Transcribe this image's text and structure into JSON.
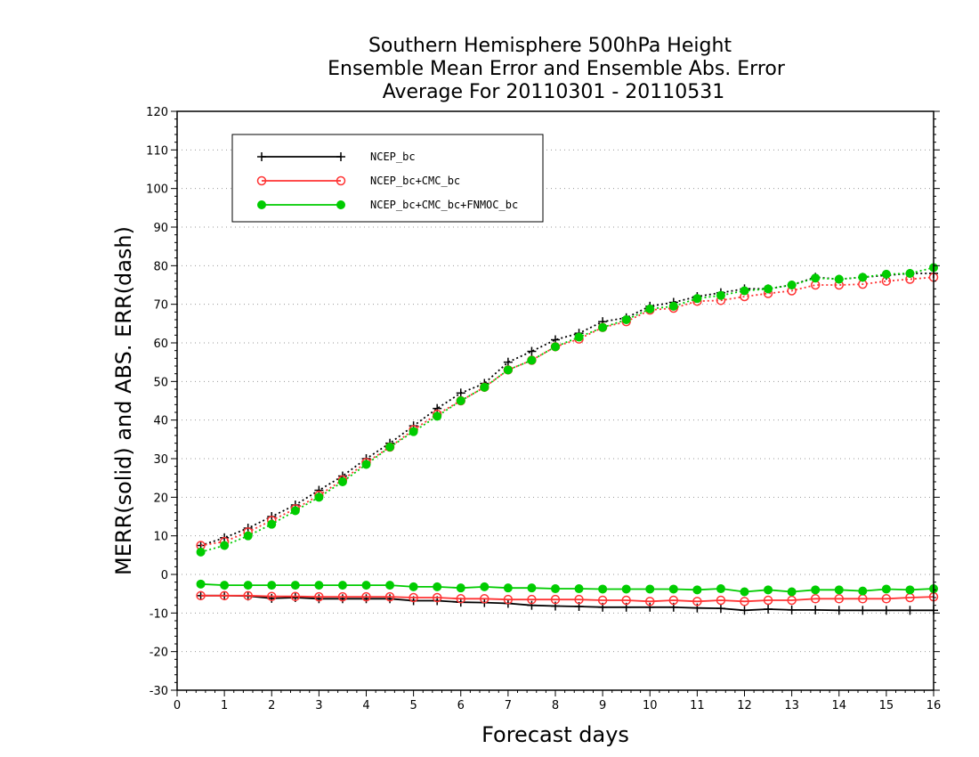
{
  "chart_data": {
    "type": "line",
    "title": [
      "Southern Hemisphere 500hPa Height",
      "Ensemble Mean Error and Ensemble Abs. Error",
      "Average For 20110301 - 20110531"
    ],
    "xlabel": "Forecast days",
    "ylabel": "MERR(solid) and ABS. ERR(dash)",
    "xlim": [
      0,
      16
    ],
    "ylim": [
      -30,
      120
    ],
    "xticks": [
      0,
      1,
      2,
      3,
      4,
      5,
      6,
      7,
      8,
      9,
      10,
      11,
      12,
      13,
      14,
      15,
      16
    ],
    "yticks": [
      -30,
      -20,
      -10,
      0,
      10,
      20,
      30,
      40,
      50,
      60,
      70,
      80,
      90,
      100,
      110,
      120
    ],
    "grid": "horizontal dotted",
    "legend_position": "top-left",
    "x": [
      0.5,
      1,
      1.5,
      2,
      2.5,
      3,
      3.5,
      4,
      4.5,
      5,
      5.5,
      6,
      6.5,
      7,
      7.5,
      8,
      8.5,
      9,
      9.5,
      10,
      10.5,
      11,
      11.5,
      12,
      12.5,
      13,
      13.5,
      14,
      14.5,
      15,
      15.5,
      16
    ],
    "series": [
      {
        "name": "NCEP_bc",
        "color": "#000000",
        "marker": "plus",
        "merr": [
          -5.5,
          -5.5,
          -5.6,
          -6.2,
          -6.0,
          -6.3,
          -6.3,
          -6.3,
          -6.3,
          -6.8,
          -6.8,
          -7.2,
          -7.3,
          -7.5,
          -8.0,
          -8.2,
          -8.3,
          -8.5,
          -8.5,
          -8.5,
          -8.5,
          -8.7,
          -8.8,
          -9.3,
          -9.0,
          -9.2,
          -9.2,
          -9.3,
          -9.3,
          -9.3,
          -9.3,
          -9.3
        ],
        "abs_err": [
          7.5,
          9.5,
          12.0,
          15.0,
          18.0,
          21.8,
          25.5,
          30.0,
          34.0,
          38.5,
          43.0,
          47.0,
          49.5,
          55.0,
          57.8,
          60.8,
          62.5,
          65.5,
          66.5,
          69.5,
          70.5,
          72.0,
          73.0,
          74.0,
          74.0,
          75.0,
          77.0,
          76.5,
          77.0,
          77.5,
          78.0,
          78.0
        ]
      },
      {
        "name": "NCEP_bc+CMC_bc",
        "color": "#ff3333",
        "marker": "open-circle",
        "merr": [
          -5.5,
          -5.5,
          -5.5,
          -5.7,
          -5.7,
          -5.8,
          -5.8,
          -5.8,
          -5.8,
          -6.0,
          -6.0,
          -6.3,
          -6.3,
          -6.5,
          -6.5,
          -6.5,
          -6.5,
          -6.7,
          -6.7,
          -7.0,
          -6.7,
          -7.0,
          -6.7,
          -7.0,
          -6.7,
          -6.7,
          -6.3,
          -6.3,
          -6.3,
          -6.3,
          -6.0,
          -5.8
        ],
        "abs_err": [
          7.5,
          8.5,
          11.0,
          14.0,
          17.0,
          20.5,
          24.5,
          29.0,
          33.0,
          37.5,
          41.5,
          45.0,
          48.5,
          53.0,
          55.5,
          59.0,
          61.0,
          64.0,
          65.5,
          68.5,
          69.0,
          70.8,
          71.0,
          72.0,
          72.8,
          73.5,
          75.0,
          75.0,
          75.2,
          76.0,
          76.5,
          77.0
        ]
      },
      {
        "name": "NCEP_bc+CMC_bc+FNMOC_bc",
        "color": "#00cc00",
        "marker": "filled-circle",
        "merr": [
          -2.5,
          -2.8,
          -2.8,
          -2.8,
          -2.8,
          -2.8,
          -2.8,
          -2.8,
          -2.8,
          -3.2,
          -3.2,
          -3.5,
          -3.2,
          -3.5,
          -3.5,
          -3.7,
          -3.7,
          -3.8,
          -3.8,
          -3.8,
          -3.8,
          -4.0,
          -3.7,
          -4.5,
          -4.0,
          -4.5,
          -4.0,
          -4.0,
          -4.3,
          -3.8,
          -4.0,
          -3.7
        ],
        "abs_err": [
          5.8,
          7.5,
          10.0,
          13.0,
          16.5,
          20.0,
          24.0,
          28.5,
          33.0,
          37.0,
          41.0,
          45.0,
          48.5,
          53.0,
          55.5,
          59.0,
          61.5,
          64.0,
          66.0,
          68.8,
          69.5,
          71.5,
          72.3,
          73.5,
          74.0,
          75.0,
          76.8,
          76.5,
          77.0,
          77.8,
          78.0,
          79.5
        ]
      }
    ]
  }
}
